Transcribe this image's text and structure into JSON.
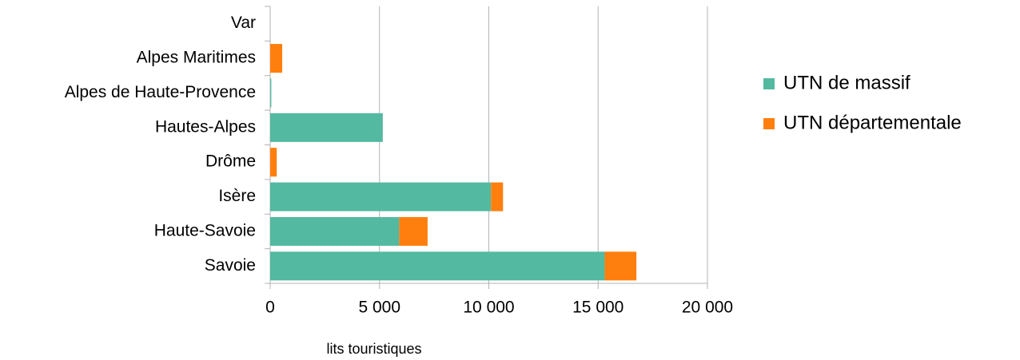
{
  "chart_data": {
    "type": "stacked-bar",
    "orientation": "horizontal",
    "x_label": "lits touristiques",
    "categories": [
      "Var",
      "Alpes Maritimes",
      "Alpes de Haute-Provence",
      "Hautes-Alpes",
      "Drôme",
      "Isère",
      "Haute-Savoie",
      "Savoie"
    ],
    "series": [
      {
        "name": "UTN de massif",
        "color": "#53b9a0",
        "values": [
          0,
          0,
          50,
          5150,
          0,
          10100,
          5900,
          15300
        ]
      },
      {
        "name": "UTN départementale",
        "color": "#ff7f0e",
        "values": [
          0,
          550,
          0,
          0,
          300,
          550,
          1300,
          1450
        ]
      }
    ],
    "xlim": [
      0,
      20000
    ],
    "xticks": [
      0,
      {
        "value": 5000,
        "label": "5 000"
      },
      {
        "value": 10000,
        "label": "10 000"
      },
      {
        "value": 15000,
        "label": "15 000"
      },
      {
        "value": 20000,
        "label": "20 000"
      }
    ],
    "grid": true,
    "legend": "right"
  }
}
